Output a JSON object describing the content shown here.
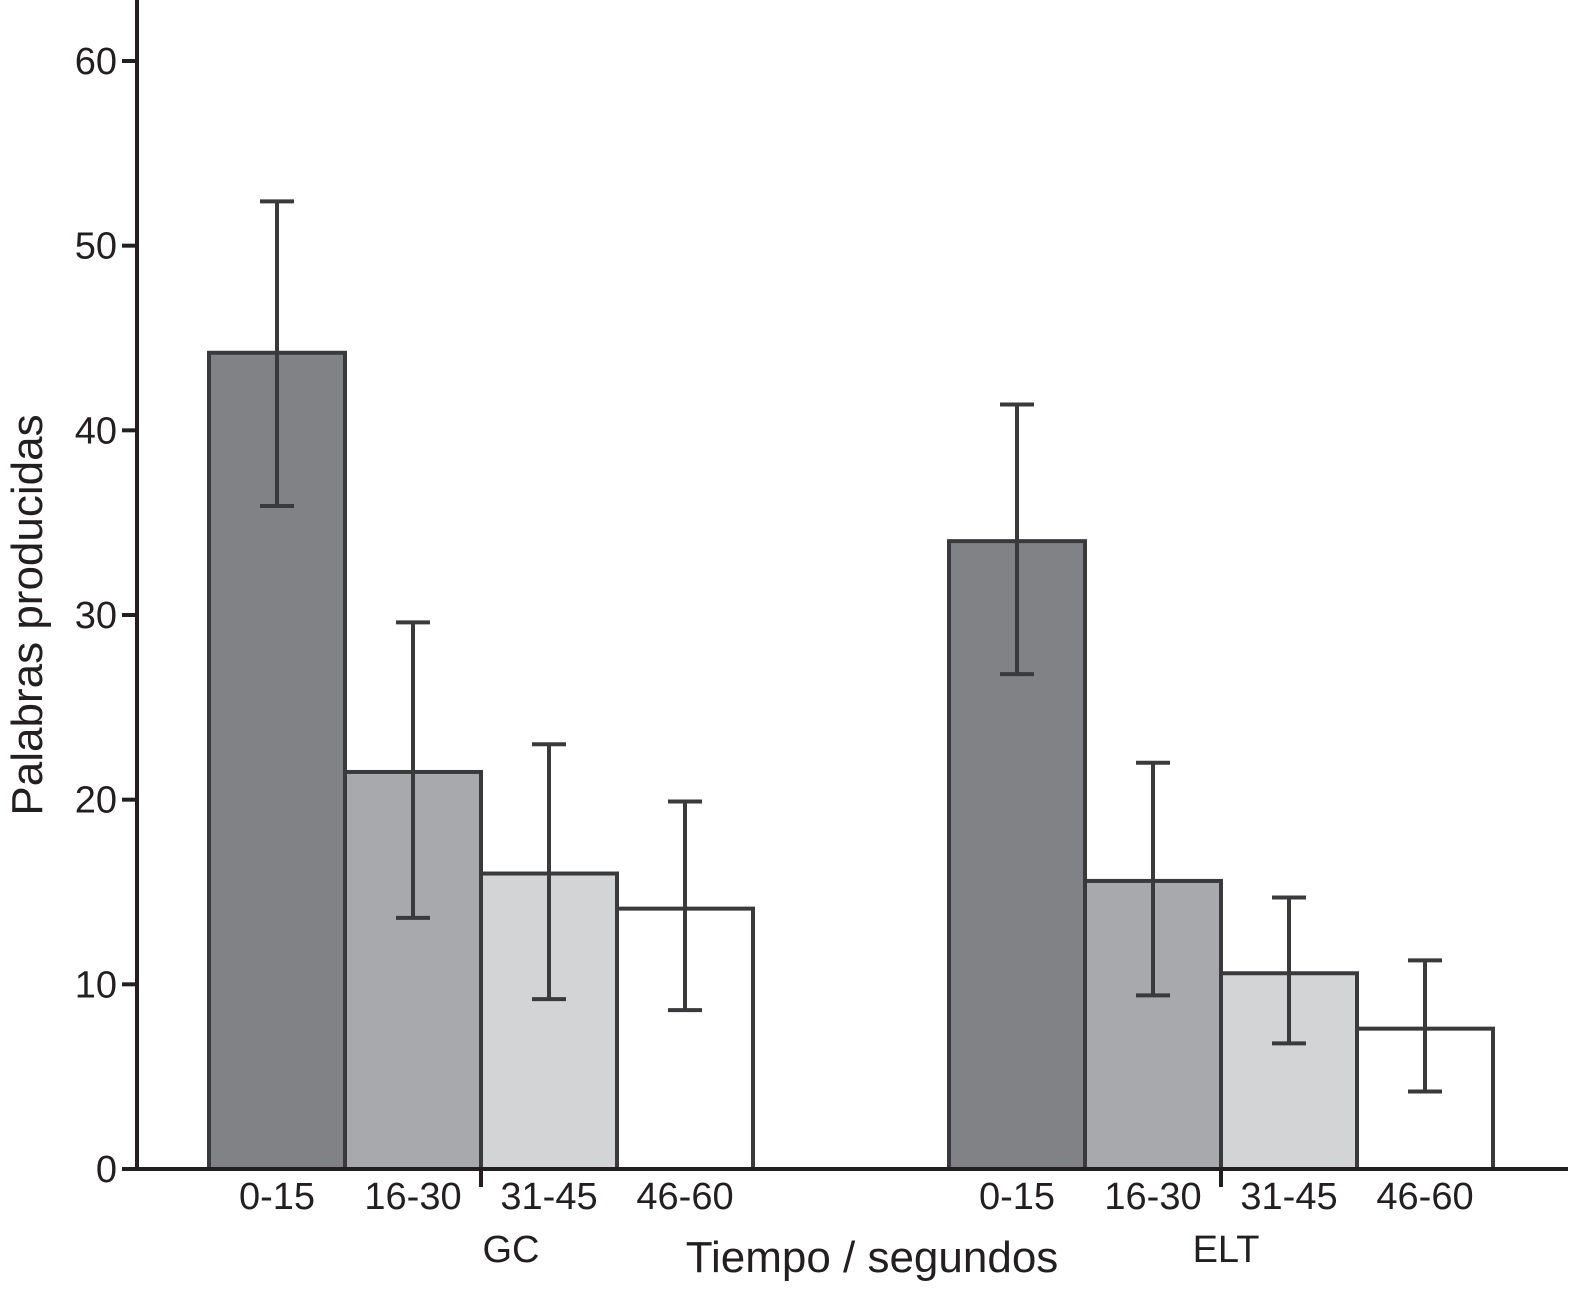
{
  "chart_data": {
    "type": "bar",
    "ylabel": "Palabras producidas",
    "xlabel": "Tiempo / segundos",
    "ylim": [
      0,
      60
    ],
    "yticks": [
      0,
      10,
      20,
      30,
      40,
      50,
      60
    ],
    "grid": false,
    "groups": [
      {
        "label": "GC",
        "bars": [
          {
            "category": "0-15",
            "value": 44.2,
            "err_low": 35.9,
            "err_high": 52.4,
            "color": "#818285"
          },
          {
            "category": "16-30",
            "value": 21.5,
            "err_low": 13.6,
            "err_high": 29.6,
            "color": "#a8a9ac"
          },
          {
            "category": "31-45",
            "value": 16.0,
            "err_low": 9.2,
            "err_high": 23.0,
            "color": "#d3d4d6"
          },
          {
            "category": "46-60",
            "value": 14.1,
            "err_low": 8.6,
            "err_high": 19.9,
            "color": "#ffffff"
          }
        ]
      },
      {
        "label": "ELT",
        "bars": [
          {
            "category": "0-15",
            "value": 34.0,
            "err_low": 26.8,
            "err_high": 41.4,
            "color": "#818285"
          },
          {
            "category": "16-30",
            "value": 15.6,
            "err_low": 9.4,
            "err_high": 22.0,
            "color": "#a8a9ac"
          },
          {
            "category": "31-45",
            "value": 10.6,
            "err_low": 6.8,
            "err_high": 14.7,
            "color": "#d3d4d6"
          },
          {
            "category": "46-60",
            "value": 7.6,
            "err_low": 4.2,
            "err_high": 11.3,
            "color": "#ffffff"
          }
        ]
      }
    ]
  }
}
